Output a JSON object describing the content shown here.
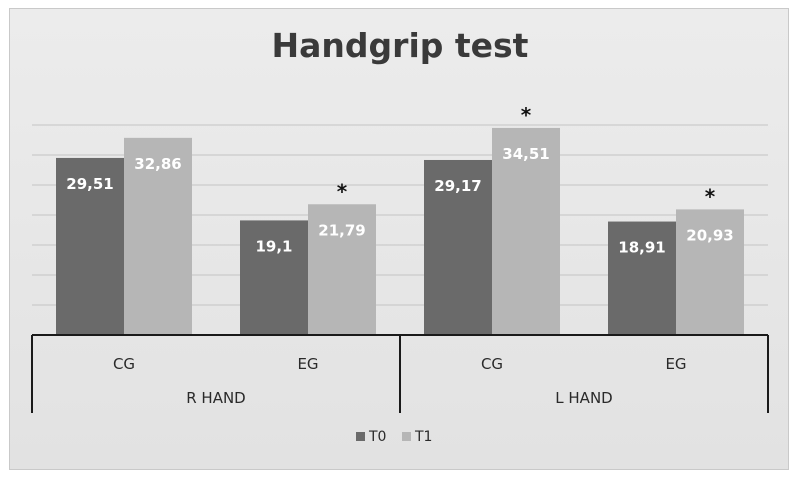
{
  "chart_data": {
    "type": "bar",
    "title": "Handgrip test",
    "groups": [
      {
        "label": "R HAND",
        "categories": [
          "CG",
          "EG"
        ]
      },
      {
        "label": "L HAND",
        "categories": [
          "CG",
          "EG"
        ]
      }
    ],
    "categories": [
      "CG",
      "EG",
      "CG",
      "EG"
    ],
    "series": [
      {
        "name": "T0",
        "color": "#6a6a6a",
        "values": [
          29.51,
          19.1,
          29.17,
          18.91
        ],
        "labels": [
          "29,51",
          "19,1",
          "29,17",
          "18,91"
        ]
      },
      {
        "name": "T1",
        "color": "#b6b6b6",
        "values": [
          32.86,
          21.79,
          34.51,
          20.93
        ],
        "labels": [
          "32,86",
          "21,79",
          "34,51",
          "20,93"
        ]
      }
    ],
    "significance": [
      {
        "series": "T1",
        "category_index": 1,
        "mark": "*"
      },
      {
        "series": "T1",
        "category_index": 2,
        "mark": "*"
      },
      {
        "series": "T1",
        "category_index": 3,
        "mark": "*"
      }
    ],
    "ylim": [
      0,
      40
    ],
    "grid": true,
    "legend_position": "bottom"
  }
}
